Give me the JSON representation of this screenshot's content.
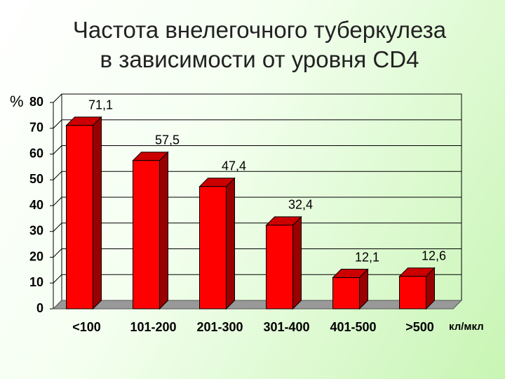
{
  "chart_data": {
    "type": "bar",
    "title": "Частота внелегочного туберкулеза\nв зависимости от уровня CD4",
    "y_label": "%",
    "x_label": "кл/мкл",
    "categories": [
      "<100",
      "101-200",
      "201-300",
      "301-400",
      "401-500",
      ">500"
    ],
    "values": [
      71.1,
      57.5,
      47.4,
      32.4,
      12.1,
      12.6
    ],
    "value_labels": [
      "71,1",
      "57,5",
      "47,4",
      "32,4",
      "12,1",
      "12,6"
    ],
    "color": "#ff0000",
    "ylim": [
      0,
      80
    ],
    "yticks": [
      0,
      10,
      20,
      30,
      40,
      50,
      60,
      70,
      80
    ],
    "grid": true
  }
}
